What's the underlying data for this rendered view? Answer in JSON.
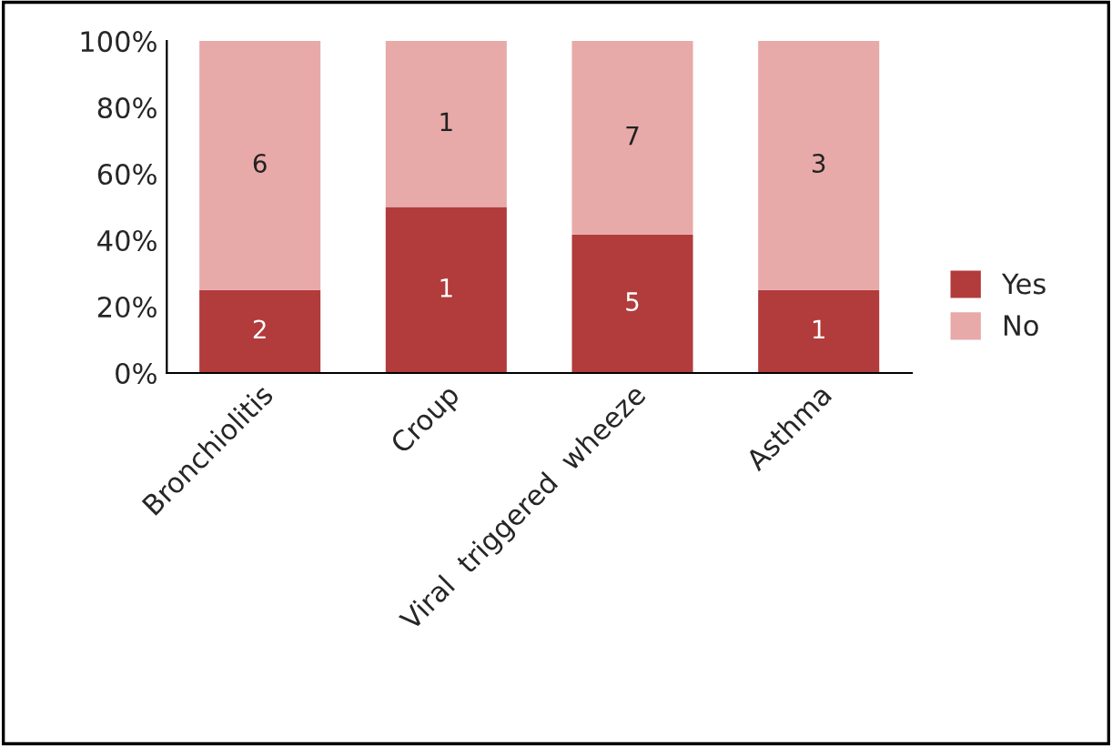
{
  "chart_data": {
    "type": "bar",
    "stacked": true,
    "categories": [
      "Bronchiolitis",
      "Croup",
      "Viral  triggered  wheeze",
      "Asthma"
    ],
    "series": [
      {
        "name": "Yes",
        "color": "#b23b3b",
        "values": [
          25,
          50,
          41.7,
          25
        ]
      },
      {
        "name": "No",
        "color": "#e8a9a9",
        "values": [
          75,
          50,
          58.3,
          75
        ]
      }
    ],
    "annotations": [
      "2",
      "1",
      "5",
      "1",
      "6",
      "1",
      "7",
      "3"
    ],
    "ylim": [
      0,
      100
    ],
    "yticks": [
      {
        "value": 0,
        "label": "0%"
      },
      {
        "value": 20,
        "label": "20%"
      },
      {
        "value": 40,
        "label": "40%"
      },
      {
        "value": 60,
        "label": "60%"
      },
      {
        "value": 80,
        "label": "80%"
      },
      {
        "value": 100,
        "label": "100%"
      }
    ],
    "grid": false,
    "legend": "right"
  }
}
